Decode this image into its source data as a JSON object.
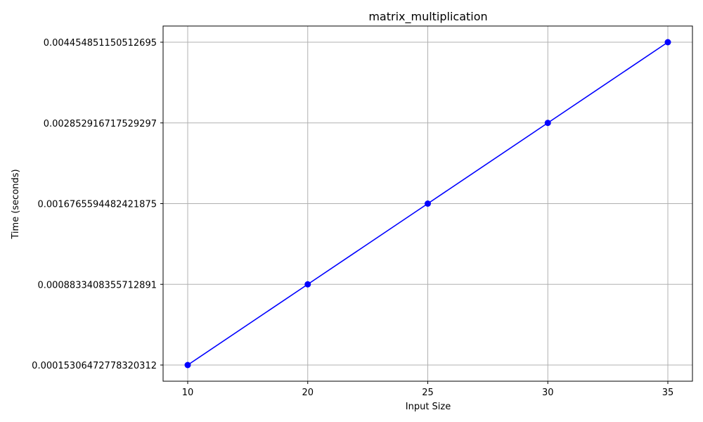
{
  "chart_data": {
    "type": "line",
    "title": "matrix_multiplication",
    "xlabel": "Input Size",
    "ylabel": "Time (seconds)",
    "x_categories": [
      "10",
      "20",
      "25",
      "30",
      "35"
    ],
    "y_categories": [
      "0.00015306472778320312",
      "0.0008833408355712891",
      "0.0016765594482421875",
      "0.002852916717529297",
      "0.004454851150512695"
    ],
    "series": [
      {
        "color": "#0000ff",
        "marker": "circle",
        "points": [
          {
            "x": "10",
            "y": "0.00015306472778320312"
          },
          {
            "x": "20",
            "y": "0.0008833408355712891"
          },
          {
            "x": "25",
            "y": "0.0016765594482421875"
          },
          {
            "x": "30",
            "y": "0.002852916717529297"
          },
          {
            "x": "35",
            "y": "0.004454851150512695"
          }
        ]
      }
    ],
    "grid": true,
    "legend": false
  }
}
